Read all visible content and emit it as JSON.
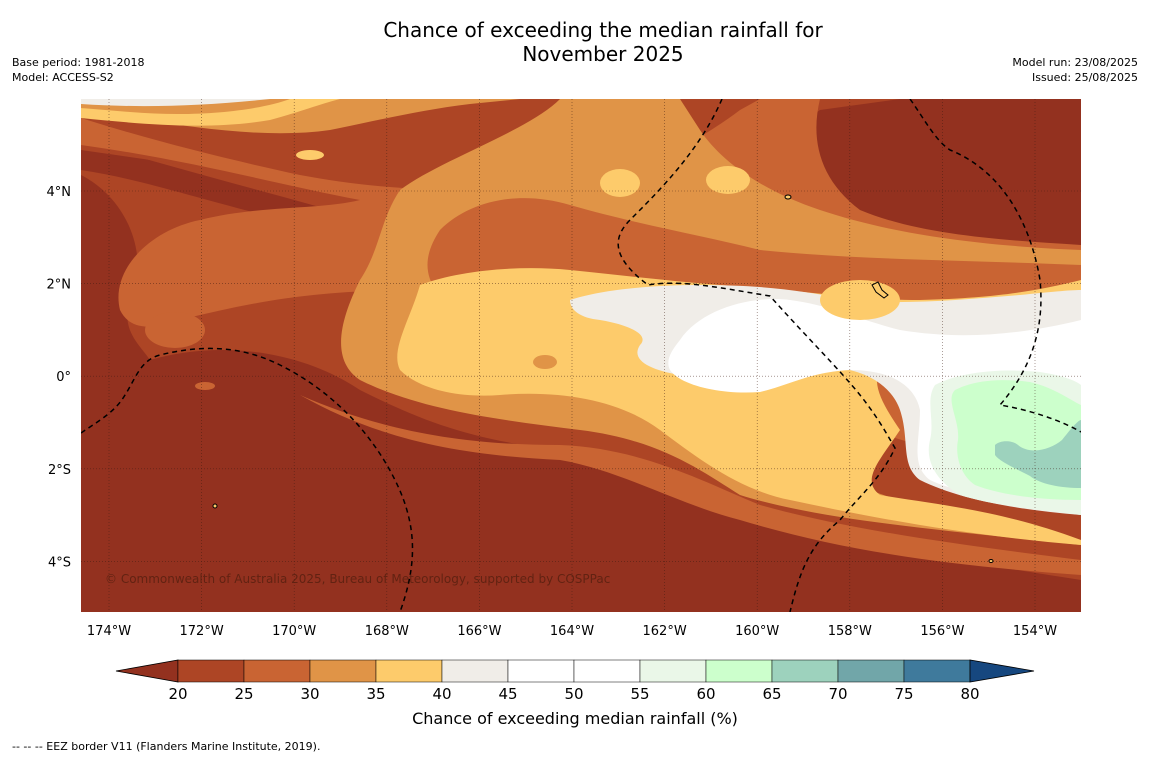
{
  "title": {
    "line1": "Chance of exceeding the median rainfall for",
    "line2": "November 2025"
  },
  "meta": {
    "base_period": "Base period: 1981-2018",
    "model": "Model: ACCESS-S2",
    "model_run": "Model run: 23/08/2025",
    "issued": "Issued: 25/08/2025"
  },
  "copyright": "© Commonwealth of Australia 2025, Bureau of Meteorology, supported by COSPPac",
  "axes": {
    "lon_labels": [
      "174°W",
      "172°W",
      "170°W",
      "168°W",
      "166°W",
      "164°W",
      "162°W",
      "160°W",
      "158°W",
      "156°W",
      "154°W"
    ],
    "lat_labels": [
      "4°N",
      "2°N",
      "0°",
      "2°S",
      "4°S"
    ]
  },
  "colorbar": {
    "title": "Chance of exceeding median rainfall (%)",
    "ticks": [
      "20",
      "25",
      "30",
      "35",
      "40",
      "45",
      "50",
      "55",
      "60",
      "65",
      "70",
      "75",
      "80"
    ],
    "colors": [
      "#93311f",
      "#ad4525",
      "#c96433",
      "#e09447",
      "#fdcb6b",
      "#f0ede8",
      "#ffffff",
      "#ffffff",
      "#eaf7e8",
      "#ccffcc",
      "#9dd2bd",
      "#71a6a9",
      "#3f7a9c",
      "#16477f"
    ]
  },
  "footnote": "--  --  -- EEZ border V11 (Flanders Marine Institute, 2019)."
}
